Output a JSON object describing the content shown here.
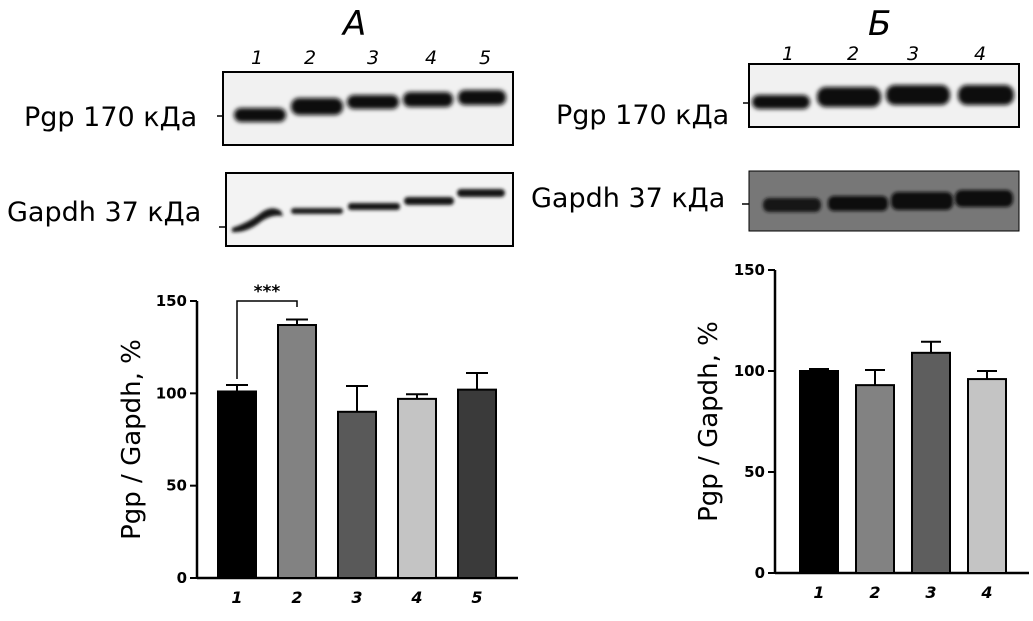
{
  "panels": [
    {
      "letter": "А",
      "lanes": [
        "1",
        "2",
        "3",
        "4",
        "5"
      ],
      "blots": [
        {
          "label": "Pgp 170 кДа",
          "intensities": [
            0.8,
            0.95,
            0.9,
            0.92,
            0.93
          ]
        },
        {
          "label": "Gapdh 37 кДа",
          "intensities": [
            0.7,
            0.6,
            0.75,
            0.8,
            0.82
          ]
        }
      ]
    },
    {
      "letter": "Б",
      "lanes": [
        "1",
        "2",
        "3",
        "4"
      ],
      "blots": [
        {
          "label": "Pgp 170 кДа",
          "intensities": [
            0.8,
            0.95,
            0.95,
            0.92
          ]
        },
        {
          "label": "Gapdh 37 кДа",
          "intensities": [
            0.85,
            0.85,
            0.9,
            0.88
          ]
        }
      ]
    }
  ],
  "chart_data": [
    {
      "type": "bar",
      "categories": [
        "1",
        "2",
        "3",
        "4",
        "5"
      ],
      "values": [
        101,
        137,
        90,
        97,
        102
      ],
      "errors": [
        3.5,
        3,
        14,
        2.5,
        9
      ],
      "colors": [
        "#000000",
        "#828282",
        "#595959",
        "#c4c4c4",
        "#3a3a3a"
      ],
      "ylabel": "Pgp / Gapdh, %",
      "ylim": [
        0,
        150
      ],
      "yticks": [
        0,
        50,
        100,
        150
      ],
      "significance": {
        "from": 0,
        "to": 1,
        "label": "***"
      }
    },
    {
      "type": "bar",
      "categories": [
        "1",
        "2",
        "3",
        "4"
      ],
      "values": [
        100,
        93,
        109,
        96
      ],
      "errors": [
        1,
        7.5,
        5.5,
        4
      ],
      "colors": [
        "#000000",
        "#828282",
        "#5e5e5e",
        "#c4c4c4"
      ],
      "ylabel": "Pgp / Gapdh, %",
      "ylim": [
        0,
        150
      ],
      "yticks": [
        0,
        50,
        100,
        150
      ]
    }
  ]
}
